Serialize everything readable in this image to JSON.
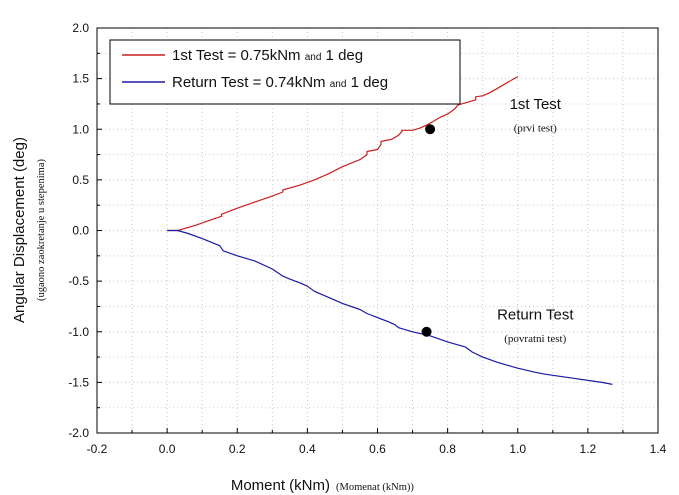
{
  "chart_data": {
    "type": "line",
    "title": "",
    "xlabel": "Moment (kNm)",
    "xlabel_sub": "(Momenat (kNm))",
    "ylabel": "Angular Displacement (deg)",
    "ylabel_sub": "(ugaono zaokretanje u stepenima)",
    "xlim": [
      -0.2,
      1.4
    ],
    "ylim": [
      -2.0,
      2.0
    ],
    "xticks": [
      "-0.2",
      "0.0",
      "0.2",
      "0.4",
      "0.6",
      "0.8",
      "1.0",
      "1.2",
      "1.4"
    ],
    "yticks": [
      "2.0",
      "1.5",
      "1.0",
      "0.5",
      "0.0",
      "-0.5",
      "-1.0",
      "-1.5",
      "-2.0"
    ],
    "grid": true,
    "legend_position": "top-left",
    "legend": [
      {
        "text": "1st Test = 0.75kNm",
        "small": "and",
        "tail": "1 deg",
        "color": "#cc2020"
      },
      {
        "text": "Return Test = 0.74kNm",
        "small": "and",
        "tail": "1 deg",
        "color": "#1a1aa8"
      }
    ],
    "series": [
      {
        "color": "#cc2020",
        "x": [
          0.0,
          0.03,
          0.08,
          0.12,
          0.155,
          0.155,
          0.2,
          0.25,
          0.3,
          0.33,
          0.33,
          0.38,
          0.42,
          0.46,
          0.5,
          0.55,
          0.57,
          0.57,
          0.6,
          0.61,
          0.61,
          0.64,
          0.66,
          0.67,
          0.67,
          0.7,
          0.72,
          0.74,
          0.76,
          0.78,
          0.8,
          0.82,
          0.83,
          0.86,
          0.88,
          0.88,
          0.9,
          0.92,
          0.94,
          0.96,
          0.98,
          1.0
        ],
        "y": [
          0.0,
          0.0,
          0.05,
          0.1,
          0.14,
          0.16,
          0.22,
          0.28,
          0.34,
          0.38,
          0.4,
          0.45,
          0.5,
          0.56,
          0.63,
          0.7,
          0.75,
          0.78,
          0.8,
          0.85,
          0.88,
          0.9,
          0.94,
          0.98,
          0.99,
          0.99,
          1.01,
          1.04,
          1.08,
          1.12,
          1.15,
          1.2,
          1.24,
          1.27,
          1.29,
          1.32,
          1.33,
          1.36,
          1.4,
          1.44,
          1.48,
          1.52
        ]
      },
      {
        "color": "#1a1aa8",
        "x": [
          0.0,
          0.03,
          0.06,
          0.1,
          0.15,
          0.16,
          0.2,
          0.25,
          0.3,
          0.33,
          0.35,
          0.38,
          0.4,
          0.42,
          0.46,
          0.5,
          0.55,
          0.57,
          0.6,
          0.63,
          0.65,
          0.66,
          0.7,
          0.75,
          0.8,
          0.85,
          0.87,
          0.9,
          0.94,
          0.98,
          1.0,
          1.05,
          1.08,
          1.12,
          1.16,
          1.2,
          1.24,
          1.27
        ],
        "y": [
          0.0,
          0.0,
          -0.03,
          -0.08,
          -0.15,
          -0.2,
          -0.25,
          -0.3,
          -0.38,
          -0.45,
          -0.48,
          -0.52,
          -0.55,
          -0.6,
          -0.66,
          -0.72,
          -0.78,
          -0.82,
          -0.86,
          -0.9,
          -0.93,
          -0.96,
          -1.0,
          -1.04,
          -1.1,
          -1.15,
          -1.2,
          -1.25,
          -1.3,
          -1.34,
          -1.36,
          -1.4,
          -1.42,
          -1.44,
          -1.46,
          -1.48,
          -1.5,
          -1.52
        ]
      }
    ],
    "points": [
      {
        "x": 0.75,
        "y": 1.0
      },
      {
        "x": 0.74,
        "y": -1.0
      }
    ],
    "annotations": [
      {
        "main": "1st Test",
        "sub": "(prvi test)",
        "x": 1.05,
        "y": 1.2,
        "sub_y": 0.98
      },
      {
        "main": "Return Test",
        "sub": "(povratni test)",
        "x": 1.05,
        "y": -0.88,
        "sub_y": -1.1
      }
    ]
  }
}
